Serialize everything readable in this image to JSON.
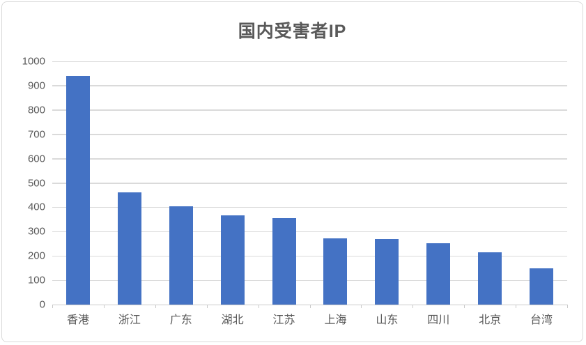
{
  "chart_data": {
    "type": "bar",
    "title": "国内受害者IP",
    "categories": [
      "香港",
      "浙江",
      "广东",
      "湖北",
      "江苏",
      "上海",
      "山东",
      "四川",
      "北京",
      "台湾"
    ],
    "values": [
      940,
      460,
      405,
      368,
      355,
      272,
      268,
      252,
      215,
      150
    ],
    "xlabel": "",
    "ylabel": "",
    "ylim": [
      0,
      1000
    ],
    "yticks": [
      0,
      100,
      200,
      300,
      400,
      500,
      600,
      700,
      800,
      900,
      1000
    ],
    "grid": true,
    "legend_position": "none",
    "colors": {
      "bar": "#4472C4",
      "gridline": "#DADADA",
      "axis_line": "#C9C9C9",
      "text": "#595959",
      "title_text": "#595959",
      "card_border": "#D9D9D9",
      "background": "#FFFFFF"
    }
  }
}
